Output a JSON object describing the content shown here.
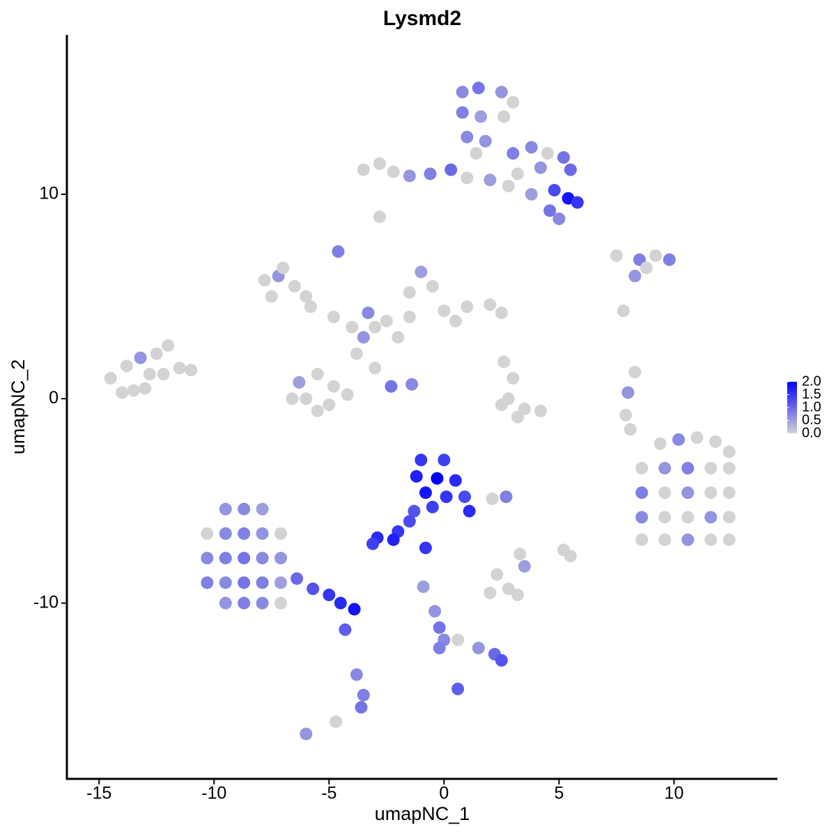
{
  "chart_data": {
    "type": "scatter",
    "title": "Lysmd2",
    "x_label": "umapNC_1",
    "y_label": "umapNC_2",
    "xlim": [
      -16.4,
      14.5
    ],
    "ylim": [
      -18.6,
      17.8
    ],
    "xticks": [
      -15,
      -10,
      -5,
      0,
      5,
      10
    ],
    "yticks": [
      -10,
      0,
      10
    ],
    "color_low": "#d3d3d3",
    "color_high": "#0000ff",
    "color_lim": [
      0,
      2
    ],
    "color_ticks": [
      {
        "value": 2,
        "label": "2.0"
      },
      1.5,
      {
        "value": 1,
        "label": "1.0"
      },
      0.5,
      {
        "value": 0,
        "label": "0.0"
      }
    ],
    "x": [
      -14.5,
      -13.8,
      -13.2,
      -12.5,
      -12,
      -13,
      -14,
      -12.2,
      -11.5,
      -11,
      -12.8,
      -13.5,
      -7.8,
      -7.2,
      -6.5,
      -7.5,
      -6,
      -5.8,
      -4.8,
      -4,
      -3.5,
      -3,
      -2.5,
      -3.8,
      -1,
      -1.5,
      -0.5,
      -1.5,
      0,
      1,
      2,
      2.5,
      0.5,
      -2,
      -6.3,
      -5.5,
      -4.8,
      -6,
      -5,
      -4.2,
      -6.6,
      -5.5,
      -3,
      -2.3,
      -1.4,
      -4.6,
      -7,
      -3.3,
      -3.5,
      -2.8,
      -2.2,
      -1.5,
      -0.6,
      0.3,
      1,
      2,
      2.8,
      -2.8,
      0.8,
      1.5,
      2.5,
      3,
      0.8,
      1.6,
      2.6,
      1,
      1.8,
      1.4,
      3,
      3.8,
      4.5,
      5.2,
      5.5,
      4.2,
      3.2,
      4.8,
      5.4,
      5.8,
      4.6,
      5,
      3.8,
      7.5,
      8.5,
      9.2,
      9.8,
      8.8,
      8.3,
      7.8,
      8.3,
      8,
      7.9,
      8.1,
      3,
      2.8,
      3.5,
      4.2,
      3.2,
      2.5,
      2.6,
      9.4,
      10.2,
      11,
      11.8,
      12.4,
      8.6,
      9.6,
      10.6,
      11.6,
      12.4,
      8.6,
      9.6,
      10.6,
      11.6,
      12.4,
      8.6,
      9.6,
      10.6,
      11.6,
      12.4,
      8.6,
      9.6,
      10.6,
      11.6,
      12.4,
      -1,
      0,
      -1.2,
      -0.3,
      0.5,
      -0.8,
      0.1,
      0.9,
      1.1,
      -0.5,
      -1.3,
      -1.5,
      -2,
      -2.9,
      -2.2,
      -3.1,
      -0.8,
      2.7,
      2.1,
      -9.5,
      -8.7,
      -7.9,
      -10.3,
      -9.5,
      -8.7,
      -7.9,
      -7.1,
      -10.3,
      -9.5,
      -8.7,
      -7.9,
      -7.1,
      -10.3,
      -9.5,
      -8.7,
      -7.9,
      -7.1,
      -9.5,
      -8.7,
      -7.9,
      -7.1,
      -6.4,
      -5.7,
      -5,
      -4.5,
      -3.9,
      -4.3,
      -3.8,
      -3.5,
      -3.6,
      -6,
      -4.7,
      -0.9,
      -0.4,
      -0.2,
      0,
      -0.2,
      0.6,
      1.5,
      2.2,
      2.5,
      0.6,
      2,
      2.8,
      3.2,
      2.3,
      3.5,
      5.2,
      5.5,
      3.3
    ],
    "y": [
      1,
      1.6,
      2,
      2.2,
      2.6,
      0.5,
      0.3,
      1.2,
      1.5,
      1.4,
      1.2,
      0.4,
      5.8,
      6,
      5.5,
      5,
      5,
      4.5,
      4,
      3.5,
      3,
      3.5,
      3.8,
      2.2,
      6.2,
      5.2,
      5.5,
      4,
      4.3,
      4.5,
      4.6,
      4.2,
      3.8,
      3,
      0.8,
      1.2,
      0.6,
      0,
      -0.3,
      0.2,
      0,
      -0.6,
      1.5,
      0.6,
      0.7,
      7.2,
      6.4,
      4.2,
      11.2,
      11.5,
      11.1,
      10.9,
      11,
      11.2,
      10.8,
      10.7,
      10.4,
      8.9,
      15,
      15.2,
      15,
      14.5,
      14,
      13.8,
      13.8,
      12.8,
      12.6,
      12,
      12,
      12.3,
      12,
      11.8,
      11.2,
      11.3,
      11,
      10.2,
      9.8,
      9.6,
      9.2,
      8.8,
      10,
      7,
      6.8,
      7,
      6.8,
      6.4,
      6,
      4.3,
      1.3,
      0.3,
      -0.8,
      -1.5,
      1,
      0,
      -0.5,
      -0.6,
      -0.9,
      -0.3,
      1.8,
      -2.2,
      -2,
      -1.9,
      -2.1,
      -2.6,
      -3.4,
      -3.4,
      -3.4,
      -3.4,
      -3.4,
      -4.6,
      -4.6,
      -4.6,
      -4.6,
      -4.6,
      -5.8,
      -5.8,
      -5.8,
      -5.8,
      -5.8,
      -6.9,
      -6.9,
      -6.9,
      -6.9,
      -6.9,
      -3,
      -3,
      -3.8,
      -3.9,
      -4,
      -4.6,
      -4.8,
      -4.8,
      -5.5,
      -5.3,
      -5.5,
      -6,
      -6.5,
      -6.8,
      -6.9,
      -7.1,
      -7.3,
      -4.8,
      -4.9,
      -5.4,
      -5.4,
      -5.4,
      -6.6,
      -6.6,
      -6.6,
      -6.6,
      -6.6,
      -7.8,
      -7.8,
      -7.8,
      -7.8,
      -7.8,
      -9,
      -9,
      -9,
      -9,
      -9,
      -10,
      -10,
      -10,
      -10,
      -8.8,
      -9.3,
      -9.6,
      -10,
      -10.3,
      -11.3,
      -13.5,
      -14.5,
      -15.1,
      -16.4,
      -15.8,
      -9.2,
      -10.4,
      -11.2,
      -11.8,
      -12.2,
      -11.8,
      -12.2,
      -12.5,
      -12.8,
      -14.2,
      -9.5,
      -9.3,
      -9.6,
      -8.6,
      -8.2,
      -7.4,
      -7.7,
      -7.6
    ],
    "values": [
      0,
      0,
      0.6,
      0,
      0,
      0,
      0,
      0,
      0,
      0,
      0,
      0,
      0,
      0.6,
      0,
      0,
      0,
      0,
      0,
      0,
      0.6,
      0,
      0,
      0,
      0.5,
      0,
      0,
      0,
      0,
      0,
      0,
      0,
      0,
      0,
      0.5,
      0,
      0,
      0,
      0,
      0,
      0,
      0,
      0,
      0.9,
      0.7,
      0.8,
      0,
      0.7,
      0,
      0,
      0,
      0.6,
      0.8,
      1,
      0,
      0.5,
      0,
      0,
      0.7,
      0.9,
      0.6,
      0,
      0.8,
      0.5,
      0,
      0.7,
      0.6,
      0,
      0.8,
      0.7,
      0,
      0.9,
      1,
      0.6,
      0,
      1.3,
      1.8,
      1.5,
      0.9,
      0.7,
      0.5,
      0,
      0.8,
      0,
      0.8,
      0,
      0.6,
      0,
      0,
      0.6,
      0,
      0,
      0,
      0,
      0,
      0,
      0,
      0,
      0,
      0,
      0.7,
      0,
      0,
      0,
      0,
      0.6,
      0.8,
      0,
      0,
      0.8,
      0,
      0.6,
      0,
      0,
      0.7,
      0,
      0,
      0.6,
      0,
      0,
      0,
      0.6,
      0,
      0,
      1.5,
      1.4,
      1.7,
      2,
      1.6,
      1.8,
      1.5,
      1.3,
      1.6,
      1.4,
      1.2,
      1.3,
      1.5,
      1.6,
      1.7,
      1.4,
      1.5,
      0.8,
      0,
      0.6,
      0.7,
      0.5,
      0,
      0.7,
      0.8,
      0.6,
      0,
      0.7,
      0.8,
      0.9,
      0.7,
      0.6,
      0.8,
      0.7,
      0.9,
      0.8,
      0.5,
      0.6,
      0.8,
      0.7,
      0,
      1,
      1.2,
      1.5,
      1.6,
      1.8,
      1.1,
      0.7,
      0.8,
      0.9,
      0.6,
      0,
      0.5,
      0.6,
      0.9,
      0.7,
      0.8,
      0,
      0.6,
      1,
      1.2,
      1.1,
      0,
      0,
      0,
      0,
      0.5,
      0,
      0,
      0
    ]
  }
}
